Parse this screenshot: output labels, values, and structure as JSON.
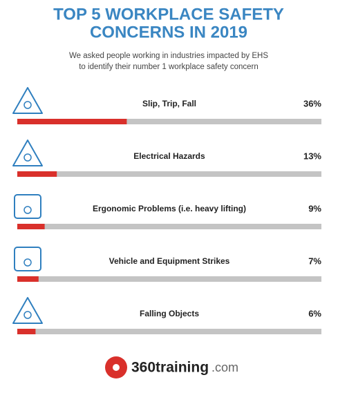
{
  "chart_data": {
    "type": "bar",
    "title": [
      "TOP 5 WORKPLACE SAFETY",
      "CONCERNS IN 2019"
    ],
    "subtitle": [
      "We asked people working in industries impacted by EHS",
      "to identify their number 1 workplace safety concern"
    ],
    "categories": [
      "Slip, Trip, Fall",
      "Electrical Hazards",
      "Ergonomic Problems (i.e. heavy lifting)",
      "Vehicle and Equipment Strikes",
      "Falling Objects"
    ],
    "values": [
      36,
      13,
      9,
      7,
      6
    ],
    "value_labels": [
      "36%",
      "13%",
      "9%",
      "7%",
      "6%"
    ],
    "xlim": [
      0,
      100
    ],
    "color": "#d9302b",
    "track_color": "#c4c4c4",
    "logo": {
      "brand": "360training",
      "suffix": ".com"
    }
  }
}
